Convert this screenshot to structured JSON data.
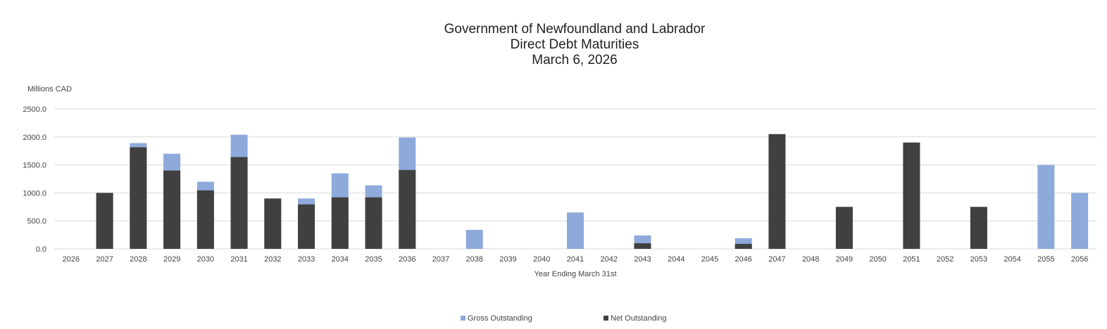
{
  "chart_data": {
    "type": "bar",
    "stacked_overlap": true,
    "title": [
      "Government of Newfoundland and Labrador",
      "Direct Debt Maturities",
      "March 6, 2026"
    ],
    "ylabel": "Millions CAD",
    "xlabel": "Year Ending March 31st",
    "ylim": [
      0,
      2500
    ],
    "yticks": [
      "0.0",
      "500.0",
      "1000.0",
      "1500.0",
      "2000.0",
      "2500.0"
    ],
    "grid": true,
    "legend_placement": "bottom",
    "categories": [
      "2026",
      "2027",
      "2028",
      "2029",
      "2030",
      "2031",
      "2032",
      "2033",
      "2034",
      "2035",
      "2036",
      "2037",
      "2038",
      "2039",
      "2040",
      "2041",
      "2042",
      "2043",
      "2044",
      "2045",
      "2046",
      "2047",
      "2048",
      "2049",
      "2050",
      "2051",
      "2052",
      "2053",
      "2054",
      "2055",
      "2056"
    ],
    "series": [
      {
        "name": "Gross Outstanding",
        "color": "#8eaadb",
        "values": [
          0,
          1000,
          1890,
          1700,
          1200,
          2040,
          900,
          900,
          1350,
          1135,
          1990,
          0,
          340,
          0,
          0,
          650,
          0,
          240,
          0,
          0,
          190,
          2050,
          0,
          750,
          0,
          1900,
          0,
          750,
          0,
          1500,
          1000
        ]
      },
      {
        "name": "Net Outstanding",
        "color": "#404040",
        "values": [
          0,
          1000,
          1815,
          1400,
          1045,
          1640,
          900,
          795,
          920,
          920,
          1410,
          0,
          0,
          0,
          0,
          0,
          0,
          100,
          0,
          0,
          90,
          2050,
          0,
          750,
          0,
          1900,
          0,
          750,
          0,
          0,
          0
        ]
      }
    ]
  }
}
